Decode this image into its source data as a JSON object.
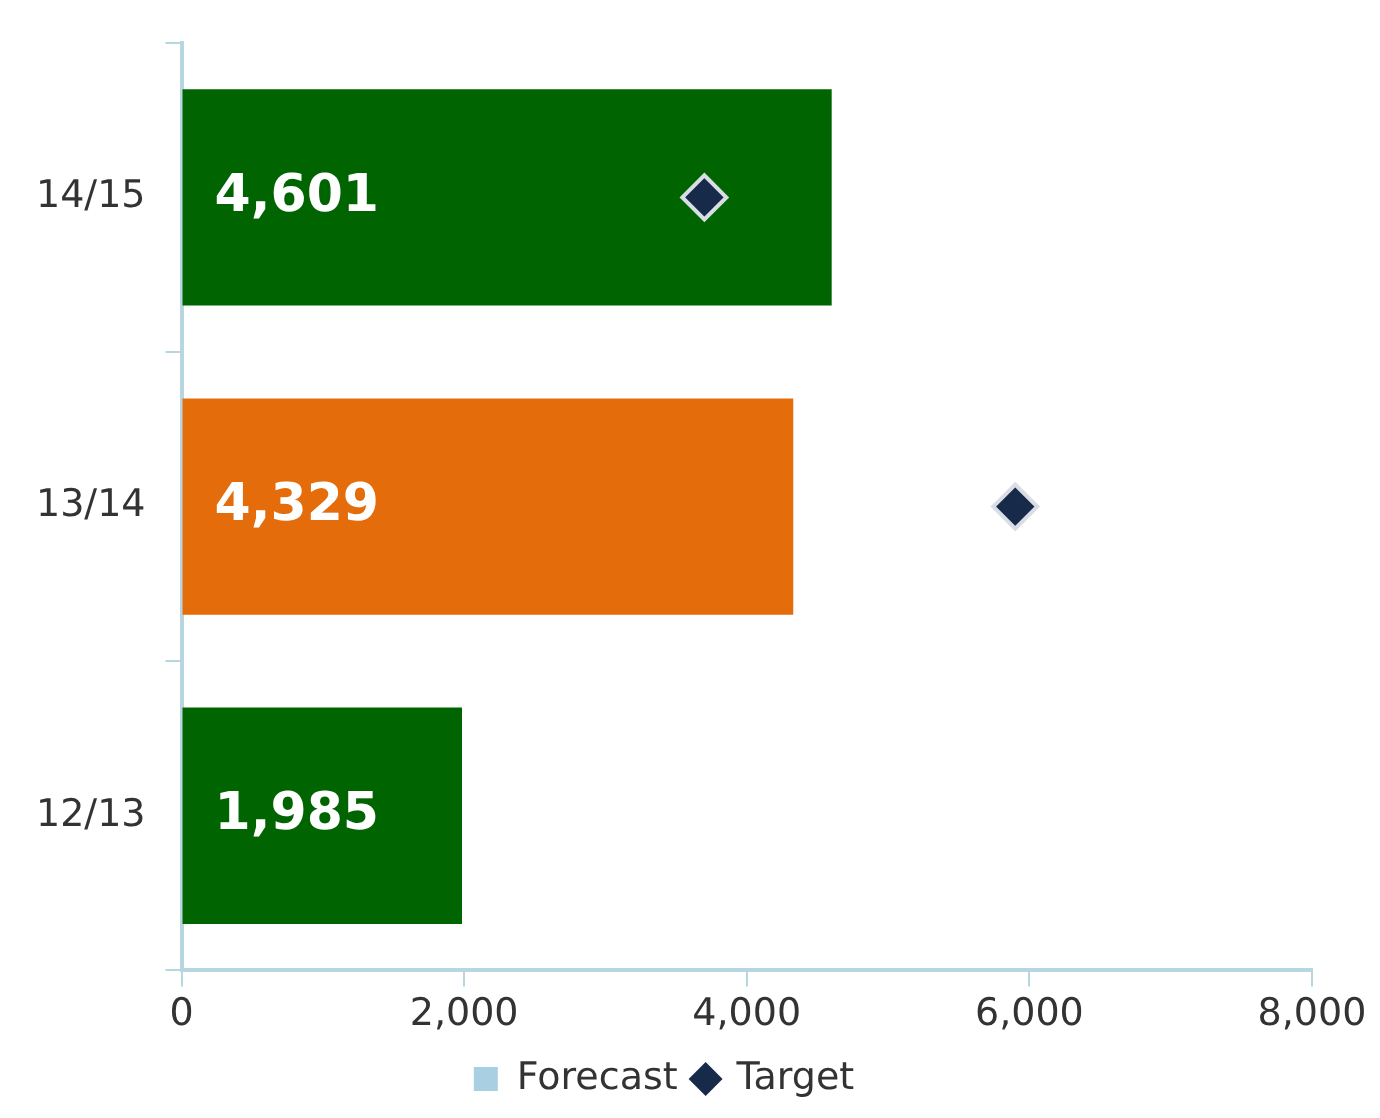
{
  "chart_data": {
    "type": "bar",
    "orientation": "horizontal",
    "categories": [
      "14/15",
      "13/14",
      "12/13"
    ],
    "series": [
      {
        "name": "Forecast",
        "color": "#a9d0e2",
        "values": [
          null,
          null,
          null
        ]
      },
      {
        "type": "bar",
        "colors": [
          "#006400",
          "#e46c0a",
          "#006400"
        ],
        "values": [
          4601,
          4329,
          1985
        ],
        "value_labels": [
          "4,601",
          "4,329",
          "1,985"
        ]
      },
      {
        "name": "Target",
        "type": "scatter",
        "color": "#172a4a",
        "marker": "diamond",
        "x": [
          "14/15",
          "13/14",
          "12/13"
        ],
        "values": [
          3700,
          5900,
          null
        ]
      }
    ],
    "xlim": [
      0,
      8000
    ],
    "xticks": [
      {
        "value": 0,
        "label": "0"
      },
      {
        "value": 2000,
        "label": "2,000"
      },
      {
        "value": 4000,
        "label": "4,000"
      },
      {
        "value": 6000,
        "label": "6,000"
      },
      {
        "value": 8000,
        "label": "8,000"
      }
    ],
    "grid": false,
    "legend": "bottom"
  }
}
